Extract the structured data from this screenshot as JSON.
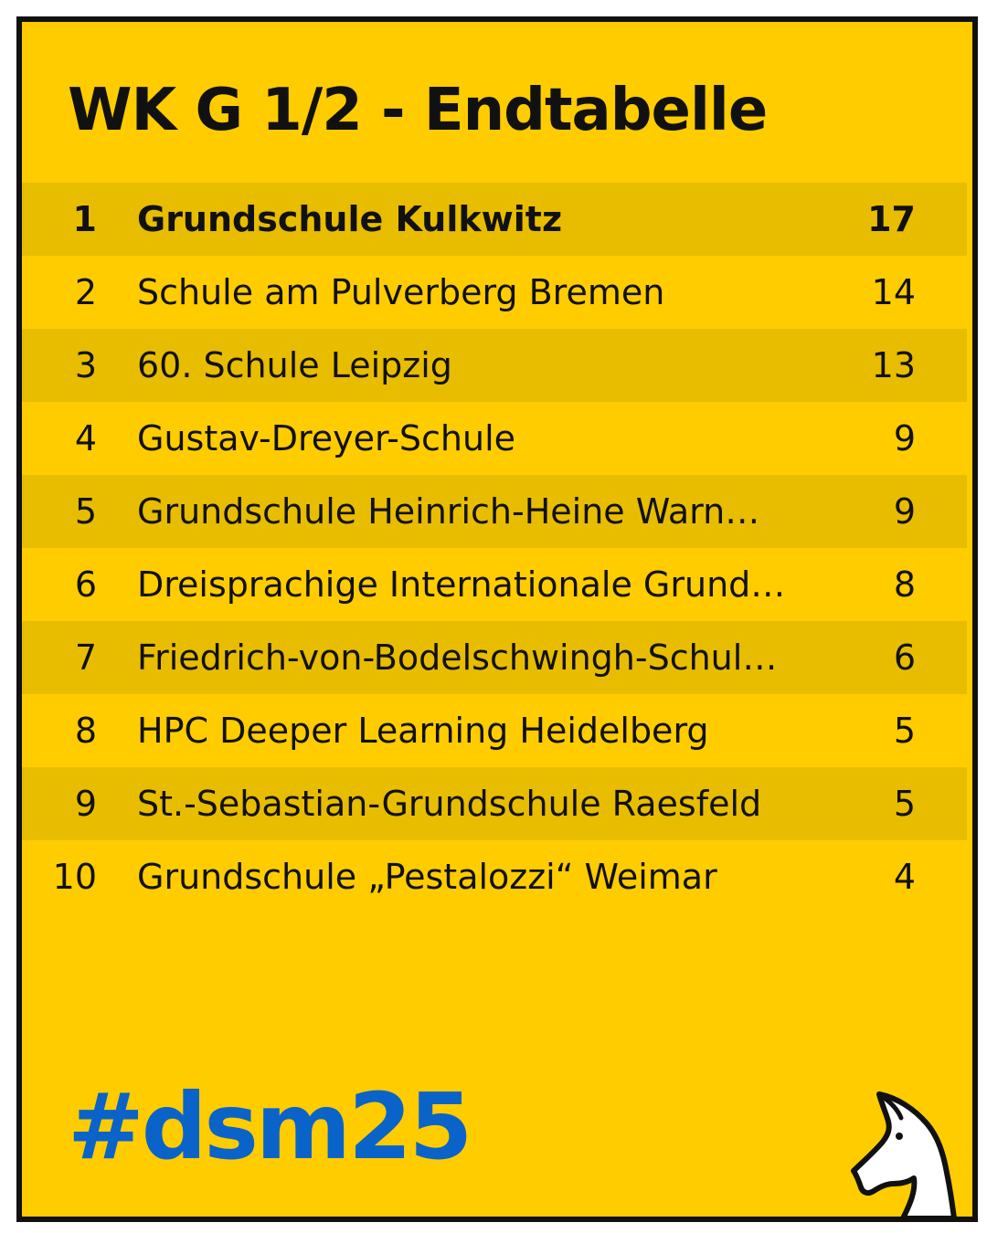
{
  "title": "WK G 1/2 - Endtabelle",
  "standings": [
    {
      "rank": "1",
      "team": "Grundschule Kulkwitz",
      "points": "17"
    },
    {
      "rank": "2",
      "team": "Schule am Pulverberg Bremen",
      "points": "14"
    },
    {
      "rank": "3",
      "team": "60. Schule Leipzig",
      "points": "13"
    },
    {
      "rank": "4",
      "team": "Gustav-Dreyer-Schule",
      "points": "9"
    },
    {
      "rank": "5",
      "team": "Grundschule Heinrich-Heine Warn…",
      "points": "9"
    },
    {
      "rank": "6",
      "team": "Dreisprachige Internationale Grund…",
      "points": "8"
    },
    {
      "rank": "7",
      "team": "Friedrich-von-Bodelschwingh-Schul…",
      "points": "6"
    },
    {
      "rank": "8",
      "team": "HPC Deeper Learning Heidelberg",
      "points": "5"
    },
    {
      "rank": "9",
      "team": "St.-Sebastian-Grundschule Raesfeld",
      "points": "5"
    },
    {
      "rank": "10",
      "team": "Grundschule „Pestalozzi“ Weimar",
      "points": "4"
    }
  ],
  "hashtag": "#dsm25",
  "icons": {
    "logo": "chess-knight-icon"
  },
  "colors": {
    "background": "#ffcc00",
    "row_shade": "#e8bd00",
    "border": "#111111",
    "text": "#111111",
    "hashtag": "#0a63c9"
  }
}
